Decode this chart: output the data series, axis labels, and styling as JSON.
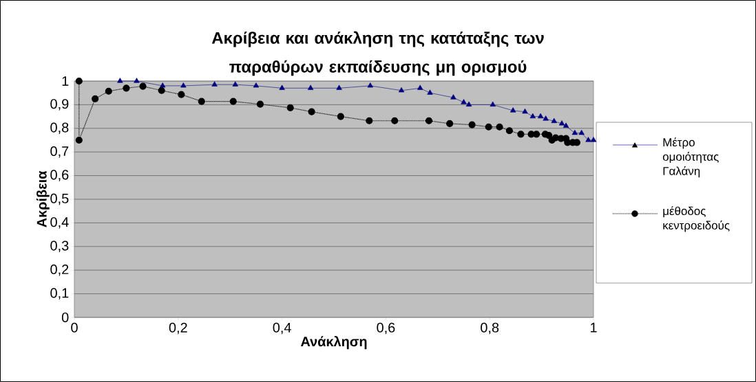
{
  "chart_data": {
    "type": "line",
    "title": "Ακρίβεια και ανάκληση της κατάταξης των παραθύρων εκπαίδευσης μη ορισμού",
    "xlabel": "Ανάκληση",
    "ylabel": "Ακρίβεια",
    "xlim": [
      0,
      1
    ],
    "ylim": [
      0,
      1
    ],
    "xticks": [
      0,
      {
        "value": 0.2,
        "label": "0,2"
      },
      {
        "value": 0.4,
        "label": "0,4"
      },
      {
        "value": 0.6,
        "label": "0,6"
      },
      {
        "value": 0.8,
        "label": "0,8"
      },
      1
    ],
    "yticks": [
      0,
      {
        "value": 0.1,
        "label": "0,1"
      },
      {
        "value": 0.2,
        "label": "0,2"
      },
      {
        "value": 0.3,
        "label": "0,3"
      },
      {
        "value": 0.4,
        "label": "0,4"
      },
      {
        "value": 0.5,
        "label": "0,5"
      },
      {
        "value": 0.6,
        "label": "0,6"
      },
      {
        "value": 0.7,
        "label": "0,7"
      },
      {
        "value": 0.8,
        "label": "0,8"
      },
      {
        "value": 0.9,
        "label": "0,9"
      },
      1
    ],
    "grid": "y",
    "legend": "right",
    "series": [
      {
        "name": "Μέτρο ομοιότητας Γαλάνη",
        "color": "#000080",
        "marker": "triangle",
        "line_style": "solid",
        "x": [
          0.088,
          0.12,
          0.17,
          0.21,
          0.27,
          0.31,
          0.35,
          0.4,
          0.455,
          0.51,
          0.57,
          0.63,
          0.666,
          0.685,
          0.73,
          0.75,
          0.76,
          0.806,
          0.845,
          0.868,
          0.883,
          0.898,
          0.908,
          0.924,
          0.939,
          0.947,
          0.964,
          0.977,
          0.99,
          1.0
        ],
        "values": [
          1.0,
          1.0,
          0.98,
          0.98,
          0.985,
          0.985,
          0.98,
          0.97,
          0.97,
          0.97,
          0.98,
          0.96,
          0.97,
          0.95,
          0.93,
          0.91,
          0.9,
          0.9,
          0.875,
          0.87,
          0.85,
          0.85,
          0.84,
          0.83,
          0.82,
          0.81,
          0.78,
          0.78,
          0.75,
          0.75
        ]
      },
      {
        "name": "μέθοδος κεντροειδούς",
        "color": "#000000",
        "marker": "circle",
        "line_style": "dotted",
        "x": [
          0.009,
          0.009,
          0.04,
          0.066,
          0.1,
          0.132,
          0.168,
          0.206,
          0.245,
          0.306,
          0.358,
          0.416,
          0.457,
          0.513,
          0.568,
          0.617,
          0.683,
          0.723,
          0.766,
          0.798,
          0.819,
          0.838,
          0.86,
          0.88,
          0.89,
          0.907,
          0.914,
          0.92,
          0.927,
          0.9375,
          0.947,
          0.95,
          0.96,
          0.968
        ],
        "values": [
          1.0,
          0.75,
          0.925,
          0.957,
          0.97,
          0.978,
          0.96,
          0.943,
          0.914,
          0.914,
          0.902,
          0.887,
          0.87,
          0.85,
          0.832,
          0.832,
          0.832,
          0.82,
          0.815,
          0.806,
          0.806,
          0.79,
          0.775,
          0.775,
          0.775,
          0.775,
          0.77,
          0.75,
          0.76,
          0.757,
          0.757,
          0.74,
          0.74,
          0.74
        ]
      }
    ]
  }
}
